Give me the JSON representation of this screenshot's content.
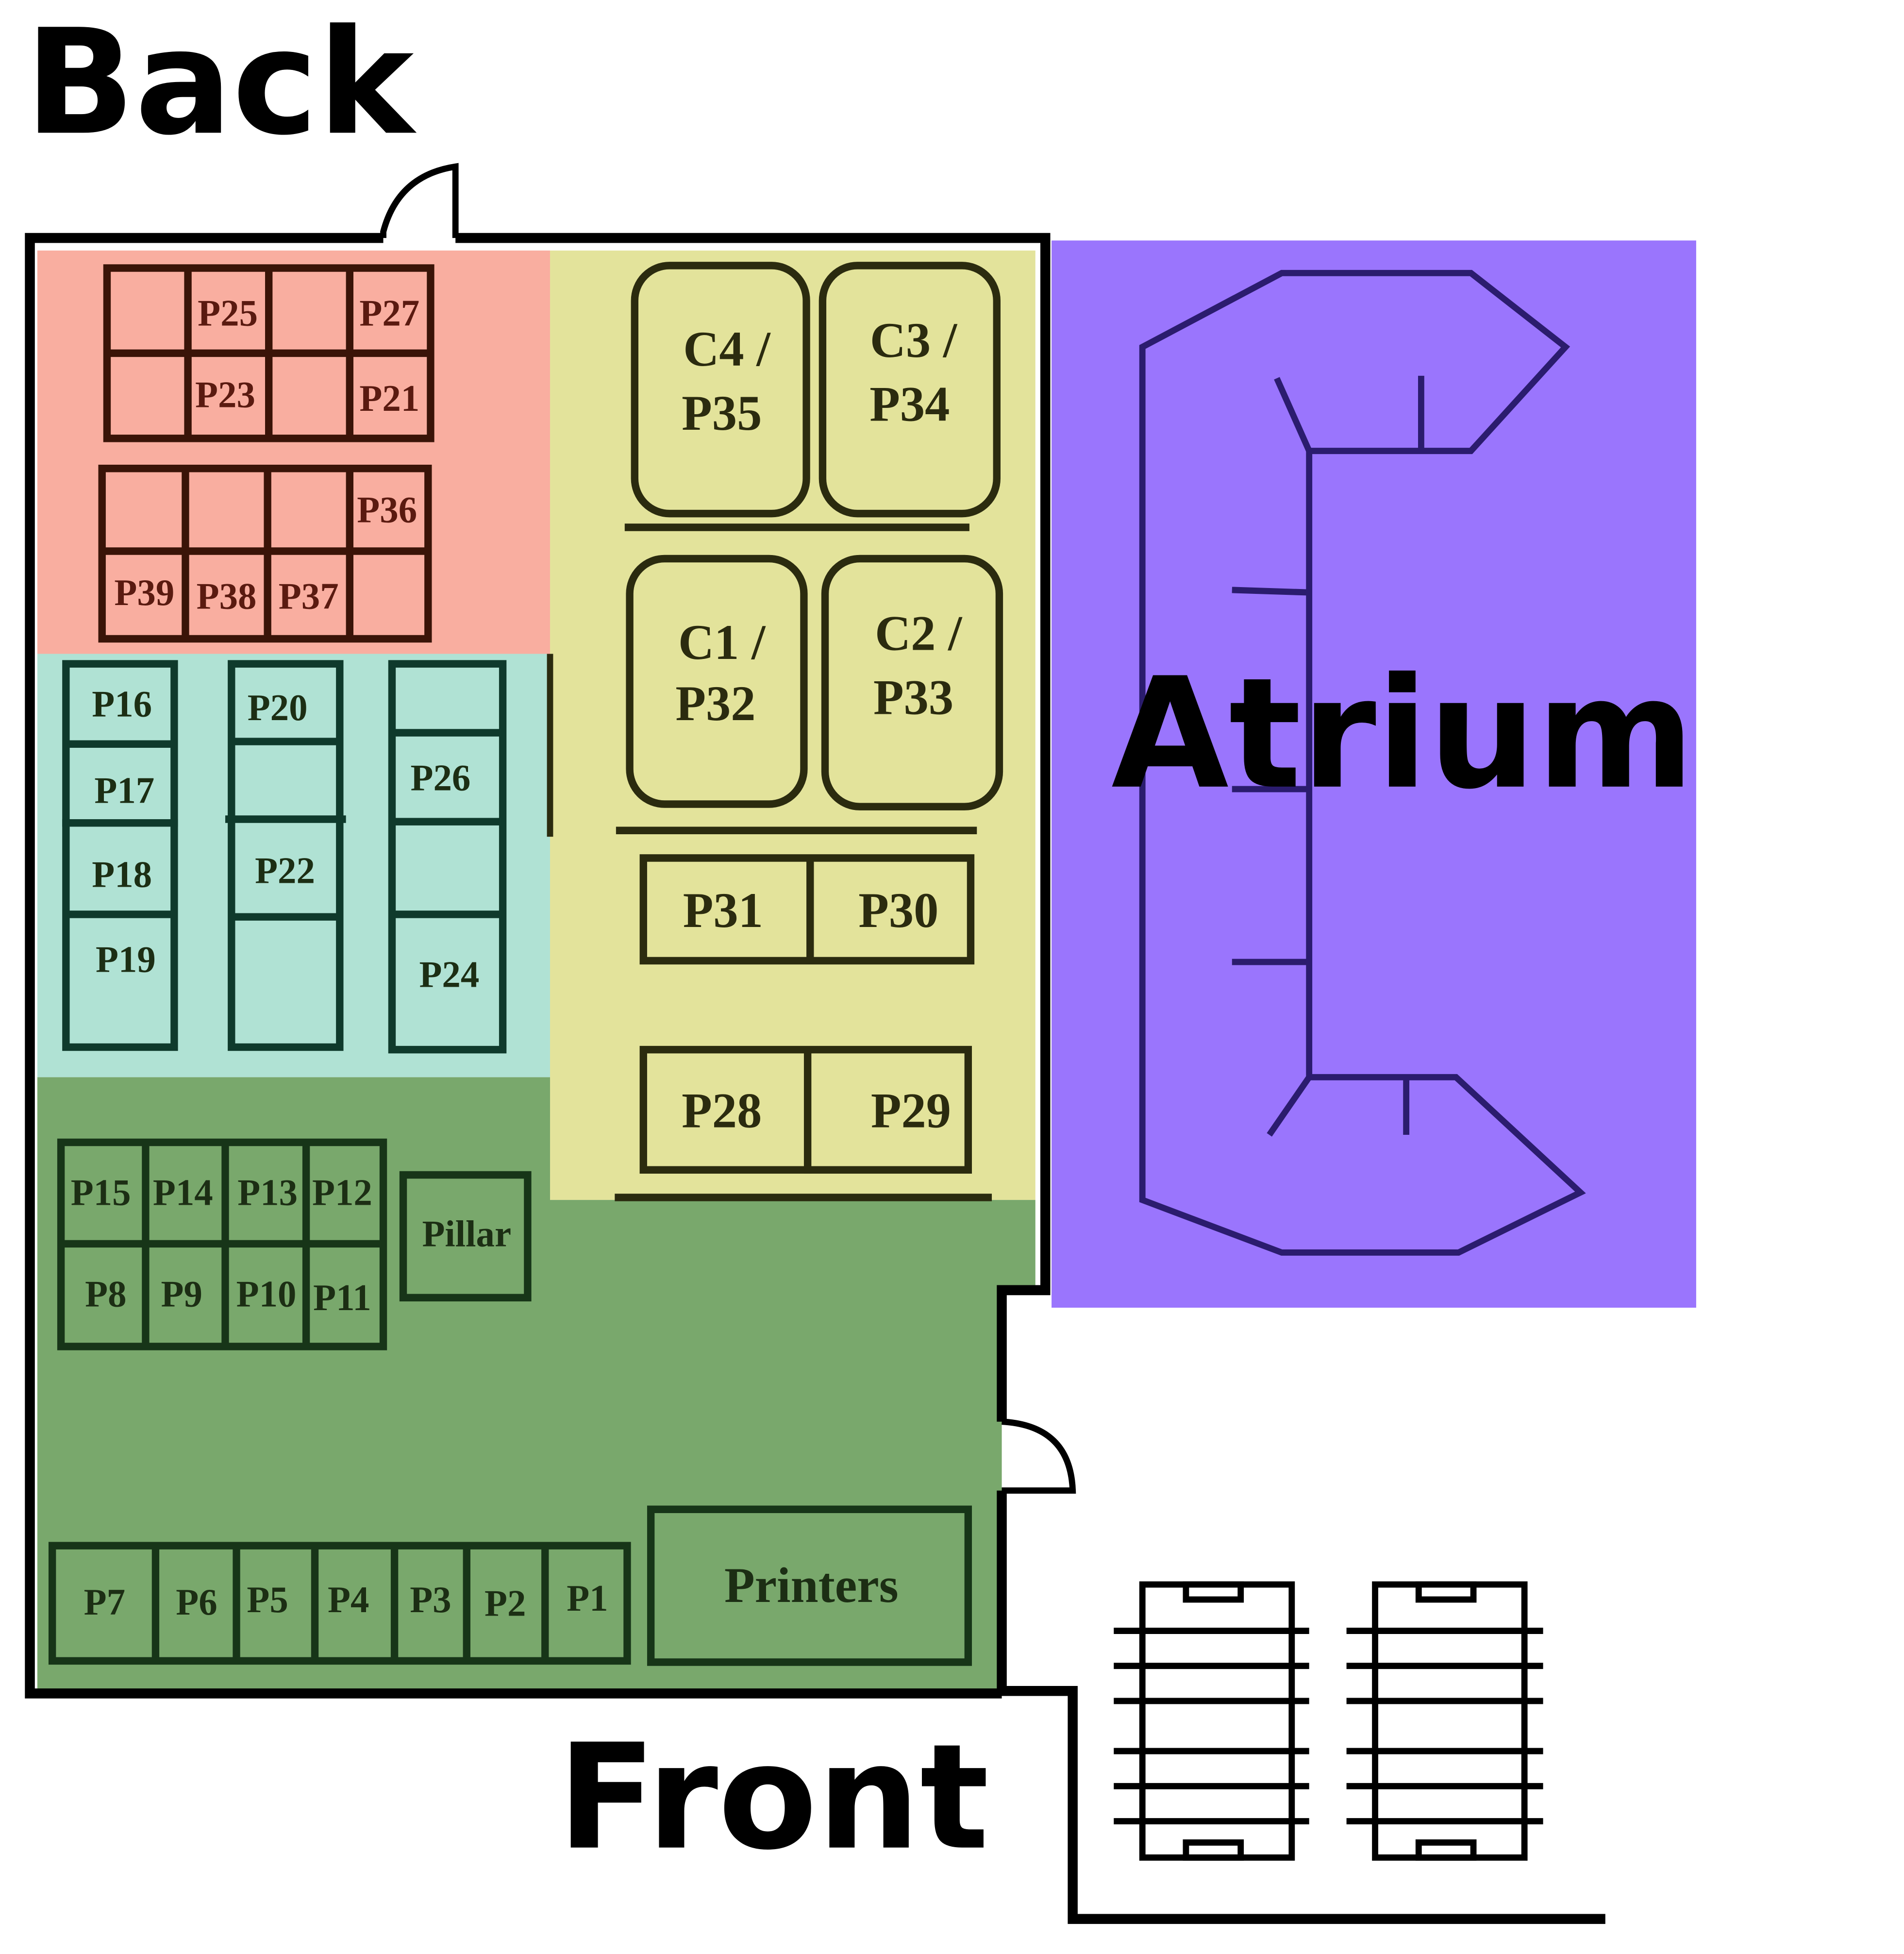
{
  "labels": {
    "back": "Back",
    "front": "Front",
    "atrium": "Atrium"
  },
  "colors": {
    "red_zone": "#f9aea0",
    "teal_zone": "#b0e2d4",
    "yellow_zone": "#e3e39b",
    "green_zone": "#79a86c",
    "atrium": "#9a75fd",
    "wall": "#000000",
    "cubicle_line_red": "#3a1408",
    "cubicle_line_teal": "#0f3a2c",
    "cubicle_line_yellow": "#2b2b0f",
    "cubicle_line_green": "#173518",
    "atrium_line": "#2b1c6e",
    "label_red": "#5a1a10",
    "label_dark": "#1c2e14"
  },
  "red_zone": {
    "row1": [
      "",
      "P25",
      "",
      "P27"
    ],
    "row2": [
      "",
      "P23",
      "",
      "P21"
    ],
    "row3": [
      "",
      "",
      "",
      "P36"
    ],
    "row4": [
      "P39",
      "P38",
      "P37",
      ""
    ]
  },
  "teal_zone": {
    "column1": [
      "P16",
      "P17",
      "P18",
      "P19"
    ],
    "column2": [
      "P20",
      "",
      "P22",
      ""
    ],
    "column3": [
      "",
      "P26",
      "",
      "P24"
    ]
  },
  "yellow_zone": {
    "offices_top": [
      {
        "line1": "C4 /",
        "line2": "P35"
      },
      {
        "line1": "C3 /",
        "line2": "P34"
      }
    ],
    "offices_bottom": [
      {
        "line1": "C1 /",
        "line2": "P32"
      },
      {
        "line1": "C2 /",
        "line2": "P33"
      }
    ],
    "desk_pair_1": [
      "P31",
      "P30"
    ],
    "desk_pair_2": [
      "P28",
      "P29"
    ]
  },
  "green_zone": {
    "block_top_row": [
      "P15",
      "P14",
      "P13",
      "P12"
    ],
    "block_bottom_row": [
      "P8",
      "P9",
      "P10",
      "P11"
    ],
    "pillar": "Pillar",
    "front_row": [
      "P7",
      "P6",
      "P5",
      "P4",
      "P3",
      "P2",
      "P1"
    ],
    "printers": "Printers"
  }
}
